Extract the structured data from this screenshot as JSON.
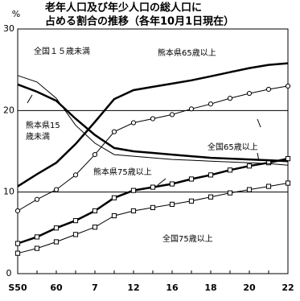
{
  "chart_data": {
    "type": "line",
    "title": [
      "老年人口及び年少人口の総人口に",
      "占める割合の推移（各年10月1日現在）"
    ],
    "y_unit": "%",
    "categories": [
      "S50",
      null,
      "60",
      null,
      "7",
      null,
      "12",
      null,
      "16",
      null,
      "18",
      null,
      "20",
      null,
      "22"
    ],
    "ylim": [
      0,
      30
    ],
    "yticks": [
      0,
      10,
      20,
      30
    ],
    "grid": true,
    "series": [
      {
        "name": "熊本県65歳以上",
        "color": "#000000",
        "marker": "none",
        "width": 2.5,
        "values": [
          10.7,
          12.2,
          13.6,
          15.9,
          18.6,
          21.4,
          22.5,
          22.9,
          23.3,
          23.7,
          24.2,
          24.7,
          25.2,
          25.6,
          25.8
        ]
      },
      {
        "name": "全国65歳以上",
        "color": "#000000",
        "marker": "circle",
        "width": 1,
        "values": [
          7.7,
          9.1,
          10.3,
          12.1,
          14.6,
          17.4,
          18.5,
          19.0,
          19.5,
          20.2,
          20.8,
          21.5,
          22.1,
          22.6,
          23.0
        ]
      },
      {
        "name": "熊本県75歳以上",
        "color": "#000000",
        "marker": "square",
        "width": 2.5,
        "values": [
          3.7,
          4.5,
          5.6,
          6.5,
          7.7,
          9.3,
          10.2,
          10.6,
          11.0,
          11.6,
          12.1,
          12.7,
          13.2,
          13.6,
          14.1
        ]
      },
      {
        "name": "全国75歳以上",
        "color": "#000000",
        "marker": "square",
        "width": 1,
        "values": [
          2.5,
          3.1,
          3.9,
          4.8,
          5.7,
          7.1,
          7.7,
          8.1,
          8.5,
          8.9,
          9.4,
          9.9,
          10.3,
          10.7,
          11.1
        ]
      },
      {
        "name": "熊本県15歳未満",
        "color": "#000000",
        "marker": "none",
        "width": 2.5,
        "values": [
          23.2,
          22.3,
          21.2,
          19.0,
          17.0,
          15.4,
          15.0,
          14.8,
          14.6,
          14.4,
          14.2,
          14.1,
          14.0,
          13.9,
          13.8
        ]
      },
      {
        "name": "全国１５歳未満",
        "color": "#000000",
        "marker": "none",
        "width": 1,
        "values": [
          24.3,
          23.5,
          21.5,
          18.2,
          16.0,
          14.6,
          14.4,
          14.2,
          14.0,
          13.9,
          13.8,
          13.7,
          13.6,
          13.5,
          13.3
        ]
      }
    ]
  }
}
